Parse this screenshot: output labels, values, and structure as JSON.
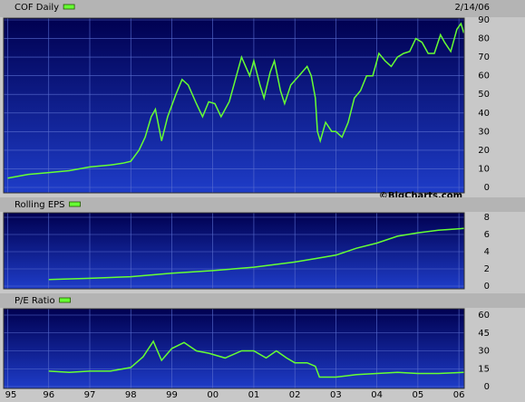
{
  "chart_data": [
    {
      "type": "line",
      "title": "COF Daily",
      "date": "2/14/06",
      "credit": "©BigCharts.com",
      "color": "#66ff33",
      "x": [
        1995.0,
        1995.5,
        1996.0,
        1996.5,
        1997.0,
        1997.5,
        1997.8,
        1998.0,
        1998.2,
        1998.35,
        1998.5,
        1998.6,
        1998.75,
        1998.9,
        1999.1,
        1999.25,
        1999.4,
        1999.6,
        1999.75,
        1999.9,
        2000.05,
        2000.2,
        2000.4,
        2000.55,
        2000.7,
        2000.8,
        2000.9,
        2001.0,
        2001.15,
        2001.25,
        2001.4,
        2001.5,
        2001.65,
        2001.75,
        2001.9,
        2002.1,
        2002.3,
        2002.4,
        2002.5,
        2002.55,
        2002.62,
        2002.75,
        2002.9,
        2003.0,
        2003.15,
        2003.3,
        2003.45,
        2003.6,
        2003.75,
        2003.9,
        2004.05,
        2004.2,
        2004.35,
        2004.5,
        2004.65,
        2004.8,
        2004.95,
        2005.1,
        2005.25,
        2005.4,
        2005.55,
        2005.65,
        2005.8,
        2005.95,
        2006.05,
        2006.12
      ],
      "values": [
        5,
        7,
        8,
        9,
        11,
        12,
        13,
        14,
        20,
        27,
        38,
        42,
        25,
        38,
        50,
        58,
        55,
        45,
        38,
        46,
        45,
        38,
        46,
        58,
        70,
        65,
        60,
        68,
        55,
        48,
        62,
        68,
        52,
        45,
        55,
        60,
        65,
        60,
        48,
        30,
        25,
        35,
        30,
        30,
        27,
        35,
        48,
        52,
        60,
        60,
        72,
        68,
        65,
        70,
        72,
        73,
        80,
        78,
        72,
        72,
        82,
        78,
        73,
        85,
        88,
        83
      ],
      "xlim": [
        1994.9,
        2006.13
      ],
      "ylim": [
        0,
        90
      ],
      "yticks": [
        0,
        10,
        20,
        30,
        40,
        50,
        60,
        70,
        80,
        90
      ]
    },
    {
      "type": "line",
      "title": "Rolling EPS",
      "color": "#66ff33",
      "x": [
        1996.0,
        1997.0,
        1998.0,
        1999.0,
        2000.0,
        2001.0,
        2002.0,
        2002.5,
        2003.0,
        2003.5,
        2004.0,
        2004.5,
        2005.0,
        2005.5,
        2006.12
      ],
      "values": [
        0.77,
        0.9,
        1.1,
        1.5,
        1.8,
        2.2,
        2.8,
        3.2,
        3.6,
        4.4,
        5.0,
        5.8,
        6.2,
        6.5,
        6.7
      ],
      "xlim": [
        1994.9,
        2006.13
      ],
      "ylim": [
        0,
        8
      ],
      "yticks": [
        0,
        2,
        4,
        6,
        8
      ]
    },
    {
      "type": "line",
      "title": "P/E Ratio",
      "color": "#66ff33",
      "x": [
        1996.0,
        1996.5,
        1997.0,
        1997.5,
        1998.0,
        1998.3,
        1998.55,
        1998.75,
        1999.0,
        1999.3,
        1999.6,
        1999.9,
        2000.3,
        2000.7,
        2001.0,
        2001.3,
        2001.55,
        2001.8,
        2002.0,
        2002.3,
        2002.5,
        2002.6,
        2003.0,
        2003.5,
        2004.0,
        2004.5,
        2005.0,
        2005.5,
        2006.12
      ],
      "values": [
        13,
        12,
        13,
        13,
        16,
        25,
        38,
        22,
        32,
        37,
        30,
        28,
        24,
        30,
        30,
        24,
        30,
        24,
        20,
        20,
        17,
        8,
        8,
        10,
        11,
        12,
        11,
        11,
        12
      ],
      "xlim": [
        1994.9,
        2006.13
      ],
      "ylim": [
        0,
        60
      ],
      "yticks": [
        0,
        15,
        30,
        45,
        60
      ],
      "xticks": [
        {
          "value": 1995,
          "label": "95"
        },
        {
          "value": 1996,
          "label": "96"
        },
        {
          "value": 1997,
          "label": "97"
        },
        {
          "value": 1998,
          "label": "98"
        },
        {
          "value": 1999,
          "label": "99"
        },
        {
          "value": 2000,
          "label": "00"
        },
        {
          "value": 2001,
          "label": "01"
        },
        {
          "value": 2002,
          "label": "02"
        },
        {
          "value": 2003,
          "label": "03"
        },
        {
          "value": 2004,
          "label": "04"
        },
        {
          "value": 2005,
          "label": "05"
        },
        {
          "value": 2006,
          "label": "06"
        }
      ]
    }
  ]
}
